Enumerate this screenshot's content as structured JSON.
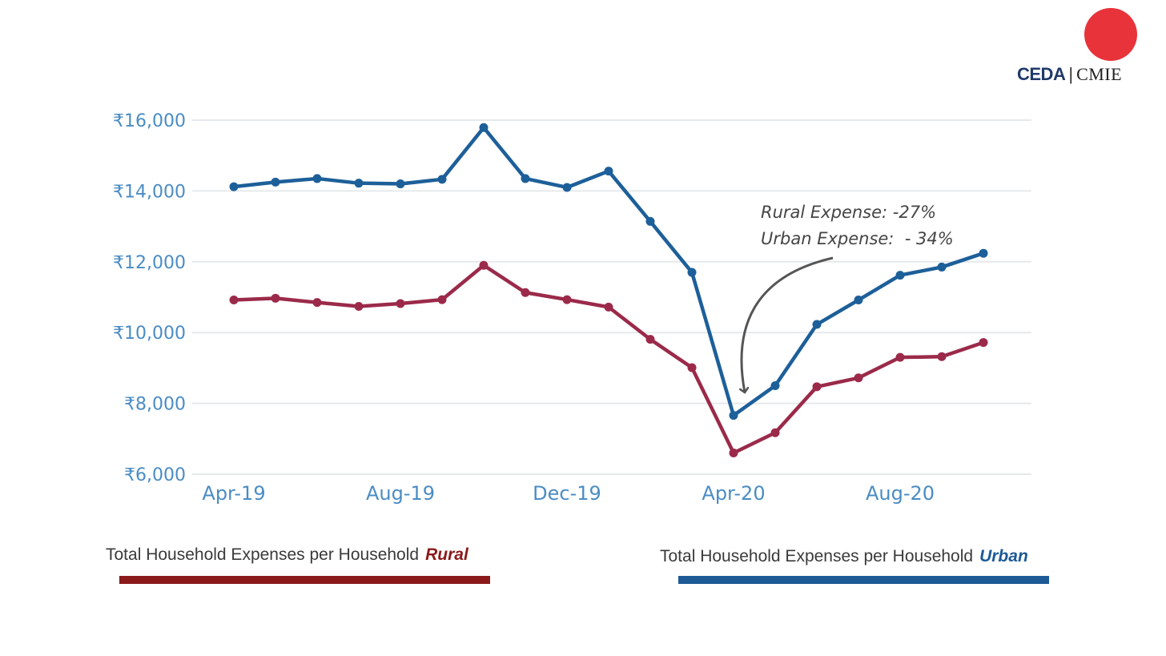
{
  "logo": {
    "ceda": "CEDA",
    "separator": "|",
    "cmie": "CMIE"
  },
  "colors": {
    "rural": "#9b2a4a",
    "urban": "#1d5f99",
    "rural_legend": "#8b1a1a",
    "urban_legend": "#1d5a96",
    "logo_circle": "#e8333a",
    "axis_text": "#4a8cc4"
  },
  "annotation": {
    "line1": "Rural Expense: -27%",
    "line2": "Urban Expense:  - 34%"
  },
  "legend": {
    "rural": {
      "label": "Total Household Expenses per Household",
      "tag": "Rural"
    },
    "urban": {
      "label": "Total Household Expenses per Household",
      "tag": "Urban"
    }
  },
  "chart_data": {
    "type": "line",
    "title": "",
    "xlabel": "",
    "ylabel": "",
    "x": [
      "Apr-19",
      "May-19",
      "Jun-19",
      "Jul-19",
      "Aug-19",
      "Sep-19",
      "Oct-19",
      "Nov-19",
      "Dec-19",
      "Jan-20",
      "Feb-20",
      "Mar-20",
      "Apr-20",
      "May-20",
      "Jun-20",
      "Jul-20",
      "Aug-20",
      "Sep-20",
      "Oct-20"
    ],
    "x_tick_labels": [
      "Apr-19",
      "Aug-19",
      "Dec-19",
      "Apr-20",
      "Aug-20"
    ],
    "y_tick_labels": [
      "₹16,000",
      "₹14,000",
      "₹12,000",
      "₹10,000",
      "₹8,000",
      "₹6,000"
    ],
    "ylim": [
      6000,
      16000
    ],
    "y_ticks": [
      16000,
      14000,
      12000,
      10000,
      8000,
      6000
    ],
    "grid": "horizontal",
    "series": [
      {
        "key": "urban",
        "values": [
          14120,
          14250,
          14350,
          14220,
          14200,
          14330,
          15790,
          14350,
          14100,
          14560,
          13140,
          11700,
          7660,
          8500,
          10230,
          10920,
          11620,
          11850,
          12240
        ]
      },
      {
        "key": "rural",
        "values": [
          10920,
          10970,
          10850,
          10740,
          10820,
          10930,
          11900,
          11130,
          10930,
          10720,
          9810,
          9010,
          6600,
          7170,
          8470,
          8720,
          9300,
          9320,
          9720
        ]
      }
    ]
  }
}
